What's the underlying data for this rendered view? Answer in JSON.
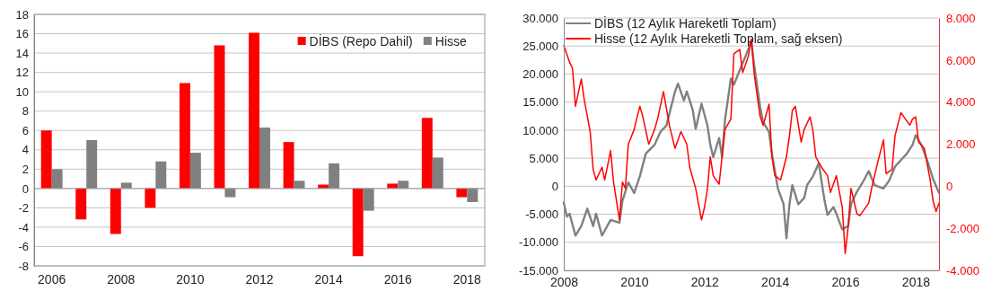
{
  "chart_data": [
    {
      "type": "bar",
      "categories": [
        "2006",
        null,
        "2008",
        null,
        "2010",
        null,
        "2012",
        null,
        "2014",
        null,
        "2016",
        null,
        "2018"
      ],
      "series": [
        {
          "name": "DİBS (Repo Dahil)",
          "color": "#ff0000",
          "values": [
            6.0,
            -3.2,
            -4.7,
            -2.0,
            10.9,
            14.8,
            16.1,
            4.8,
            0.4,
            -7.0,
            0.5,
            7.3,
            -0.9
          ]
        },
        {
          "name": "Hisse",
          "color": "#808080",
          "values": [
            2.0,
            5.0,
            0.6,
            2.8,
            3.7,
            -0.9,
            6.3,
            0.8,
            2.6,
            -2.3,
            0.8,
            3.2,
            -1.4
          ]
        }
      ],
      "ylim": [
        -8,
        18
      ],
      "yticks": [
        -8,
        -6,
        -4,
        -2,
        0,
        2,
        4,
        6,
        8,
        10,
        12,
        14,
        16,
        18
      ],
      "grid": "y",
      "legend": "top right"
    },
    {
      "type": "line",
      "xlim": [
        "2008-01",
        "2018-09"
      ],
      "xticks": [
        "2008",
        "2010",
        "2012",
        "2014",
        "2016",
        "2018"
      ],
      "ylim": [
        -15000,
        30000
      ],
      "yticks": [
        {
          "value": -15000,
          "label": "-15.000"
        },
        {
          "value": -10000,
          "label": "-10.000"
        },
        {
          "value": -5000,
          "label": "-5.000"
        },
        {
          "value": 0,
          "label": "0"
        },
        {
          "value": 5000,
          "label": "5.000"
        },
        {
          "value": 10000,
          "label": "10.000"
        },
        {
          "value": 15000,
          "label": "15.000"
        },
        {
          "value": 20000,
          "label": "20.000"
        },
        {
          "value": 25000,
          "label": "25.000"
        },
        {
          "value": 30000,
          "label": "30.000"
        }
      ],
      "y2lim": [
        -4000,
        8000
      ],
      "y2ticks": [
        {
          "value": -4000,
          "label": "-4.000"
        },
        {
          "value": -2000,
          "label": "-2.000"
        },
        {
          "value": 0,
          "label": "0"
        },
        {
          "value": 2000,
          "label": "2.000"
        },
        {
          "value": 4000,
          "label": "4.000"
        },
        {
          "value": 6000,
          "label": "6.000"
        },
        {
          "value": 8000,
          "label": "8.000"
        }
      ],
      "grid": "y",
      "legend": "top left",
      "line_style": "solid",
      "marker": "none",
      "series": [
        {
          "name": "DİBS (12 Aylık Hareketli Toplam)",
          "color": "#808080",
          "x": [
            "2008-01",
            "2008-02",
            "2008-03",
            "2008-05",
            "2008-07",
            "2008-09",
            "2008-11",
            "2008-12",
            "2009-02",
            "2009-05",
            "2009-08",
            "2009-09",
            "2009-11",
            "2010-01",
            "2010-03",
            "2010-05",
            "2010-08",
            "2010-10",
            "2010-12",
            "2011-03",
            "2011-04",
            "2011-06",
            "2011-07",
            "2011-09",
            "2011-10",
            "2011-12",
            "2012-02",
            "2012-03",
            "2012-04",
            "2012-06",
            "2012-07",
            "2012-08",
            "2012-10",
            "2012-11",
            "2013-02",
            "2013-03",
            "2013-05",
            "2013-06",
            "2013-08",
            "2013-09",
            "2013-11",
            "2013-12",
            "2014-02",
            "2014-04",
            "2014-05",
            "2014-06",
            "2014-07",
            "2014-09",
            "2014-11",
            "2014-12",
            "2015-02",
            "2015-04",
            "2015-06",
            "2015-07",
            "2015-09",
            "2015-10",
            "2015-12",
            "2016-02",
            "2016-03",
            "2016-05",
            "2016-07",
            "2016-09",
            "2016-11",
            "2017-02",
            "2017-04",
            "2017-06",
            "2017-10",
            "2017-12",
            "2018-01",
            "2018-03",
            "2018-05",
            "2018-07",
            "2018-09"
          ],
          "values": [
            -2900,
            -5400,
            -4900,
            -8800,
            -7100,
            -4000,
            -7100,
            -4900,
            -8800,
            -6000,
            -6500,
            -2600,
            700,
            -1200,
            1800,
            5800,
            7400,
            9700,
            10800,
            16900,
            18300,
            15300,
            16900,
            13600,
            10200,
            14700,
            10800,
            7400,
            5200,
            8600,
            5200,
            11900,
            19200,
            18100,
            22000,
            23100,
            25900,
            21400,
            14100,
            11400,
            9700,
            5800,
            -400,
            -3200,
            -9300,
            -3200,
            200,
            -3200,
            -2100,
            200,
            1800,
            4100,
            -2600,
            -5100,
            -3700,
            -4900,
            -7700,
            -7100,
            -3200,
            -1000,
            700,
            2700,
            200,
            -400,
            1000,
            3500,
            5800,
            7400,
            9100,
            7400,
            4600,
            1300,
            -1200
          ]
        },
        {
          "name": "Hisse (12 Aylık Hareketli Toplam, sağ eksen)",
          "color": "#ff0000",
          "axis": "y2",
          "x": [
            "2008-01",
            "2008-03",
            "2008-04",
            "2008-05",
            "2008-07",
            "2008-08",
            "2008-10",
            "2008-11",
            "2008-12",
            "2009-02",
            "2009-03",
            "2009-05",
            "2009-06",
            "2009-08",
            "2009-09",
            "2009-10",
            "2009-11",
            "2010-01",
            "2010-02",
            "2010-03",
            "2010-04",
            "2010-06",
            "2010-08",
            "2010-09",
            "2010-11",
            "2011-01",
            "2011-03",
            "2011-05",
            "2011-07",
            "2011-08",
            "2011-10",
            "2011-12",
            "2012-01",
            "2012-02",
            "2012-03",
            "2012-04",
            "2012-06",
            "2012-07",
            "2012-08",
            "2012-10",
            "2012-11",
            "2013-01",
            "2013-02",
            "2013-04",
            "2013-05",
            "2013-06",
            "2013-08",
            "2013-09",
            "2013-11",
            "2013-12",
            "2014-01",
            "2014-03",
            "2014-05",
            "2014-06",
            "2014-07",
            "2014-08",
            "2014-10",
            "2014-11",
            "2015-01",
            "2015-02",
            "2015-03",
            "2015-05",
            "2015-07",
            "2015-08",
            "2015-10",
            "2015-12",
            "2016-01",
            "2016-02",
            "2016-03",
            "2016-05",
            "2016-06",
            "2016-09",
            "2016-10",
            "2016-12",
            "2017-02",
            "2017-03",
            "2017-05",
            "2017-06",
            "2017-08",
            "2017-11",
            "2017-12",
            "2018-01",
            "2018-02",
            "2018-04",
            "2018-06",
            "2018-07",
            "2018-08",
            "2018-09"
          ],
          "values": [
            6700,
            5900,
            5600,
            3800,
            5100,
            4100,
            2600,
            800,
            300,
            900,
            300,
            1700,
            200,
            -1600,
            200,
            -100,
            2000,
            2700,
            3300,
            3800,
            3300,
            2000,
            2700,
            3200,
            4500,
            2900,
            1800,
            2600,
            2000,
            900,
            -100,
            -1600,
            -1000,
            -100,
            1400,
            500,
            100,
            1400,
            2700,
            3200,
            6300,
            6500,
            5400,
            6200,
            7000,
            5300,
            3300,
            2900,
            3900,
            1400,
            500,
            300,
            1400,
            2400,
            3600,
            3800,
            2100,
            2700,
            3300,
            2600,
            1400,
            900,
            500,
            -300,
            500,
            -1000,
            -3200,
            -1900,
            -100,
            -1300,
            -1400,
            -800,
            -100,
            1100,
            2200,
            600,
            800,
            2400,
            3500,
            2900,
            3200,
            3300,
            2100,
            1800,
            300,
            -700,
            -1200,
            -800
          ]
        }
      ]
    }
  ]
}
